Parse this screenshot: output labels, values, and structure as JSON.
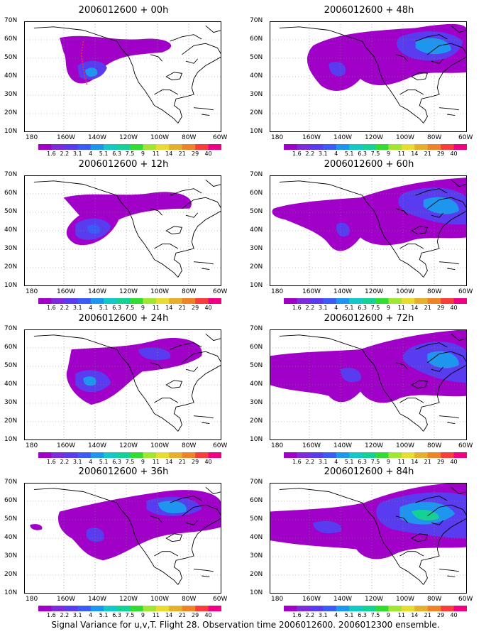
{
  "figure": {
    "caption": "Signal Variance for u,v,T. Flight 28. Observation time 2006012600. 2006012300 ensemble.",
    "lat_ticks": [
      "70N",
      "60N",
      "50N",
      "40N",
      "30N",
      "20N",
      "10N"
    ],
    "lon_ticks": [
      "180",
      "160W",
      "140W",
      "120W",
      "100W",
      "80W",
      "60W"
    ],
    "colorbar": {
      "labels": [
        "1.6",
        "2.2",
        "3.1",
        "4",
        "5.1",
        "6.3",
        "7.5",
        "9",
        "11",
        "14",
        "21",
        "29",
        "40"
      ],
      "colors": [
        "#a000c8",
        "#7d2bdc",
        "#5a3cf0",
        "#3c5af5",
        "#1e96f0",
        "#14c8c8",
        "#14d296",
        "#32dc32",
        "#a0e632",
        "#e6dc32",
        "#e6af2d",
        "#f08228",
        "#fa3c3c",
        "#f00082"
      ]
    },
    "panels": [
      {
        "title": "2006012600 + 00h"
      },
      {
        "title": "2006012600 + 48h"
      },
      {
        "title": "2006012600 + 12h"
      },
      {
        "title": "2006012600 + 60h"
      },
      {
        "title": "2006012600 + 24h"
      },
      {
        "title": "2006012600 + 72h"
      },
      {
        "title": "2006012600 + 36h"
      },
      {
        "title": "2006012600 + 84h"
      }
    ]
  }
}
